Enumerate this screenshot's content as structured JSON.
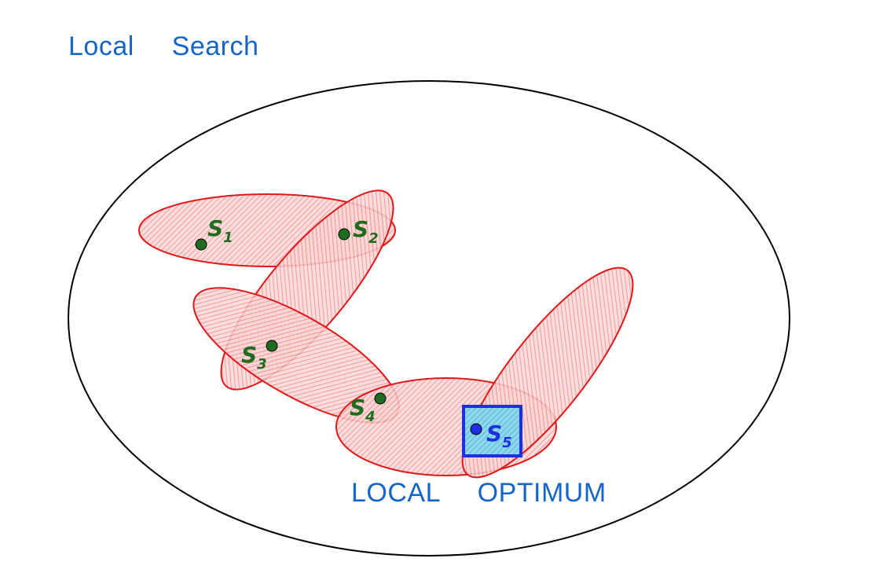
{
  "title": "Local  Search",
  "optimum_label": "LOCAL  OPTIMUM",
  "colors": {
    "title": "#1565c8",
    "neighborhood_stroke": "#e01818",
    "neighborhood_fill": "#f4a6a6",
    "solution_point": "#1f6b1f",
    "solution_label": "#1f6b1f",
    "optimum_box_stroke": "#1e2fe0",
    "optimum_box_fill": "#5cc8e0",
    "optimum_label": "#1e2fe0"
  },
  "solutions": [
    {
      "id": "s1",
      "letter": "S",
      "sub": "1"
    },
    {
      "id": "s2",
      "letter": "S",
      "sub": "2"
    },
    {
      "id": "s3",
      "letter": "S",
      "sub": "3"
    },
    {
      "id": "s4",
      "letter": "S",
      "sub": "4"
    },
    {
      "id": "s5",
      "letter": "S",
      "sub": "5"
    }
  ]
}
